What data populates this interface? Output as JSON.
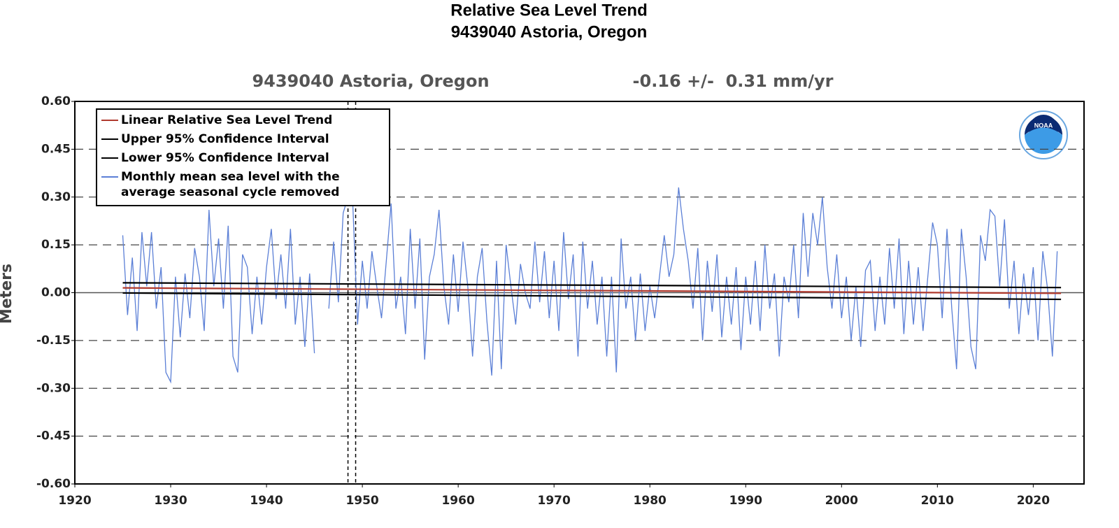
{
  "chart_data": {
    "type": "line",
    "title": "Relative Sea Level Trend",
    "title_line2": "9439040 Astoria, Oregon",
    "plot_title": "9439040 Astoria, Oregon",
    "trend_text": "-0.16 +/-  0.31 mm/yr",
    "ylabel": "Meters",
    "logo": "NOAA",
    "xlim": [
      1920,
      2025.3
    ],
    "xticks": [
      1920,
      1930,
      1940,
      1950,
      1960,
      1970,
      1980,
      1990,
      2000,
      2010,
      2020
    ],
    "ylim": [
      -0.6,
      0.6
    ],
    "yticks": [
      {
        "value": -0.6,
        "label": "-0.60"
      },
      {
        "value": -0.45,
        "label": "-0.45"
      },
      {
        "value": -0.3,
        "label": "-0.30"
      },
      {
        "value": -0.15,
        "label": "-0.15"
      },
      {
        "value": 0,
        "label": "0.00"
      },
      {
        "value": 0.15,
        "label": "0.15"
      },
      {
        "value": 0.3,
        "label": "0.30"
      },
      {
        "value": 0.45,
        "label": "0.45"
      },
      {
        "value": 0.6,
        "label": "0.60"
      }
    ],
    "grid": true,
    "vlines": [
      1948.5,
      1949.3
    ],
    "legend": "upper left",
    "series": [
      {
        "name": "Linear Relative Sea Level Trend",
        "color": "#b03a2e",
        "x": [
          1925,
          2022.9
        ],
        "values": [
          0.015,
          -0.002
        ]
      },
      {
        "name": "Upper 95% Confidence Interval",
        "color": "#000000",
        "x": [
          1925,
          2022.9
        ],
        "values": [
          0.031,
          0.016
        ]
      },
      {
        "name": "Lower 95% Confidence Interval",
        "color": "#000000",
        "x": [
          1925,
          2022.9
        ],
        "values": [
          -0.001,
          -0.021
        ]
      },
      {
        "name": "Monthly mean sea level with the average seasonal cycle removed",
        "color": "#5b7fd6",
        "x": [
          1925,
          1925.5,
          1926,
          1926.5,
          1927,
          1927.5,
          1928,
          1928.5,
          1929,
          1929.5,
          1930,
          1930.5,
          1931,
          1931.5,
          1932,
          1932.5,
          1933,
          1933.5,
          1934,
          1934.5,
          1935,
          1935.5,
          1936,
          1936.5,
          1937,
          1937.5,
          1938,
          1938.5,
          1939,
          1939.5,
          1940,
          1940.5,
          1941,
          1941.5,
          1942,
          1942.5,
          1943,
          1943.5,
          1944,
          1944.5,
          1945,
          1945.5,
          1946,
          1946.5,
          1947,
          1947.5,
          1948,
          1948.5,
          1949,
          1949.5,
          1950,
          1950.5,
          1951,
          1951.5,
          1952,
          1952.5,
          1953,
          1953.5,
          1954,
          1954.5,
          1955,
          1955.5,
          1956,
          1956.5,
          1957,
          1957.5,
          1958,
          1958.5,
          1959,
          1959.5,
          1960,
          1960.5,
          1961,
          1961.5,
          1962,
          1962.5,
          1963,
          1963.5,
          1964,
          1964.5,
          1965,
          1965.5,
          1966,
          1966.5,
          1967,
          1967.5,
          1968,
          1968.5,
          1969,
          1969.5,
          1970,
          1970.5,
          1971,
          1971.5,
          1972,
          1972.5,
          1973,
          1973.5,
          1974,
          1974.5,
          1975,
          1975.5,
          1976,
          1976.5,
          1977,
          1977.5,
          1978,
          1978.5,
          1979,
          1979.5,
          1980,
          1980.5,
          1981,
          1981.5,
          1982,
          1982.5,
          1983,
          1983.5,
          1984,
          1984.5,
          1985,
          1985.5,
          1986,
          1986.5,
          1987,
          1987.5,
          1988,
          1988.5,
          1989,
          1989.5,
          1990,
          1990.5,
          1991,
          1991.5,
          1992,
          1992.5,
          1993,
          1993.5,
          1994,
          1994.5,
          1995,
          1995.5,
          1996,
          1996.5,
          1997,
          1997.5,
          1998,
          1998.5,
          1999,
          1999.5,
          2000,
          2000.5,
          2001,
          2001.5,
          2002,
          2002.5,
          2003,
          2003.5,
          2004,
          2004.5,
          2005,
          2005.5,
          2006,
          2006.5,
          2007,
          2007.5,
          2008,
          2008.5,
          2009,
          2009.5,
          2010,
          2010.5,
          2011,
          2011.5,
          2012,
          2012.5,
          2013,
          2013.5,
          2014,
          2014.5,
          2015,
          2015.5,
          2016,
          2016.5,
          2017,
          2017.5,
          2018,
          2018.5,
          2019,
          2019.5,
          2020,
          2020.5,
          2021,
          2021.5,
          2022,
          2022.5
        ],
        "values": [
          0.18,
          -0.07,
          0.11,
          -0.12,
          0.19,
          0.02,
          0.19,
          -0.05,
          0.08,
          -0.25,
          -0.28,
          0.05,
          -0.14,
          0.06,
          -0.08,
          0.14,
          0.05,
          -0.12,
          0.26,
          0.02,
          0.17,
          -0.05,
          0.21,
          -0.2,
          -0.25,
          0.12,
          0.08,
          -0.13,
          0.05,
          -0.1,
          0.08,
          0.2,
          -0.02,
          0.12,
          -0.05,
          0.2,
          -0.1,
          0.05,
          -0.17,
          0.06,
          -0.19,
          null,
          null,
          -0.05,
          0.16,
          -0.03,
          0.25,
          0.3,
          0.28,
          -0.1,
          0.1,
          -0.05,
          0.13,
          0.02,
          -0.08,
          0.1,
          0.28,
          -0.05,
          0.05,
          -0.13,
          0.2,
          -0.05,
          0.17,
          -0.21,
          0.05,
          0.12,
          0.26,
          0.02,
          -0.1,
          0.12,
          -0.06,
          0.16,
          0.02,
          -0.2,
          0.05,
          0.14,
          -0.09,
          -0.26,
          0.1,
          -0.24,
          0.15,
          0.02,
          -0.1,
          0.09,
          0.0,
          -0.05,
          0.16,
          -0.03,
          0.13,
          -0.08,
          0.1,
          -0.12,
          0.19,
          -0.02,
          0.12,
          -0.2,
          0.16,
          -0.05,
          0.1,
          -0.1,
          0.05,
          -0.2,
          0.05,
          -0.25,
          0.17,
          -0.05,
          0.05,
          -0.15,
          0.06,
          -0.12,
          0.02,
          -0.08,
          0.05,
          0.18,
          0.05,
          0.12,
          0.33,
          0.2,
          0.1,
          -0.05,
          0.14,
          -0.15,
          0.1,
          -0.06,
          0.12,
          -0.14,
          0.05,
          -0.1,
          0.08,
          -0.18,
          0.05,
          -0.1,
          0.1,
          -0.12,
          0.15,
          -0.05,
          0.06,
          -0.2,
          0.05,
          -0.03,
          0.15,
          -0.08,
          0.25,
          0.05,
          0.25,
          0.15,
          0.3,
          0.08,
          -0.05,
          0.12,
          -0.08,
          0.05,
          -0.15,
          0.02,
          -0.17,
          0.07,
          0.1,
          -0.12,
          0.05,
          -0.1,
          0.14,
          -0.05,
          0.17,
          -0.13,
          0.1,
          -0.1,
          0.08,
          -0.12,
          0.05,
          0.22,
          0.15,
          -0.08,
          0.2,
          -0.05,
          -0.24,
          0.2,
          0.05,
          -0.17,
          -0.24,
          0.18,
          0.1,
          0.26,
          0.24,
          0.02,
          0.23,
          -0.05,
          0.1,
          -0.13,
          0.06,
          -0.07,
          0.08,
          -0.15,
          0.13,
          0.01,
          -0.2,
          0.13
        ]
      }
    ]
  }
}
